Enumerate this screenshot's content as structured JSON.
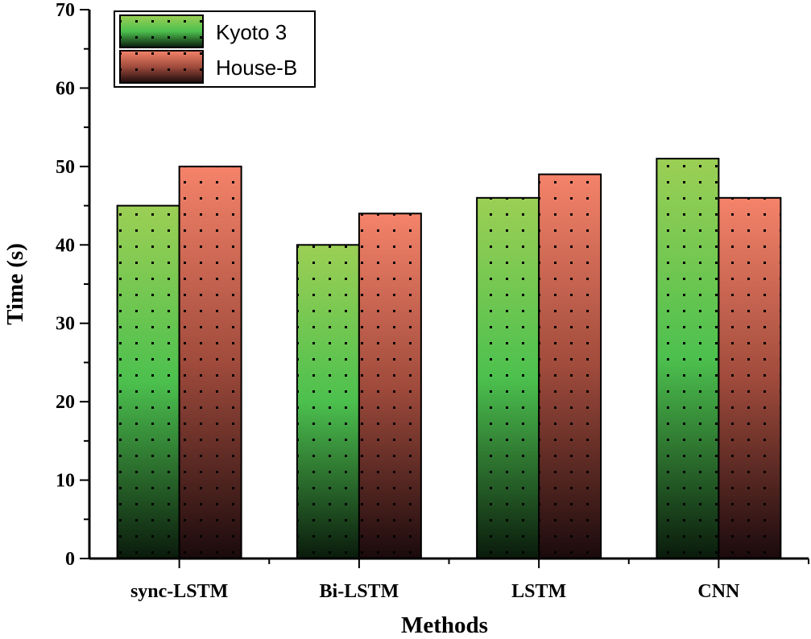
{
  "chart_data": {
    "type": "bar",
    "title": "",
    "xlabel": "Methods",
    "ylabel": "Time (s)",
    "ylim": [
      0,
      70
    ],
    "yticks": [
      0,
      10,
      20,
      30,
      40,
      50,
      60,
      70
    ],
    "y_tick_labels": [
      "0",
      "10",
      "20",
      "30",
      "40",
      "50",
      "60",
      "70"
    ],
    "categories": [
      "sync-LSTM",
      "Bi-LSTM",
      "LSTM",
      "CNN"
    ],
    "series": [
      {
        "name": "Kyoto 3",
        "values": [
          45,
          40,
          46,
          51
        ],
        "color_top": "#9ccf55",
        "color_mid": "#4cc04e",
        "color_bottom": "#0a1a0c"
      },
      {
        "name": "House-B",
        "values": [
          50,
          44,
          49,
          46
        ],
        "color_top": "#f5836a",
        "color_mid": "#a04b3c",
        "color_bottom": "#1a0a0c"
      }
    ],
    "legend_position": "top-left",
    "grid": false
  }
}
